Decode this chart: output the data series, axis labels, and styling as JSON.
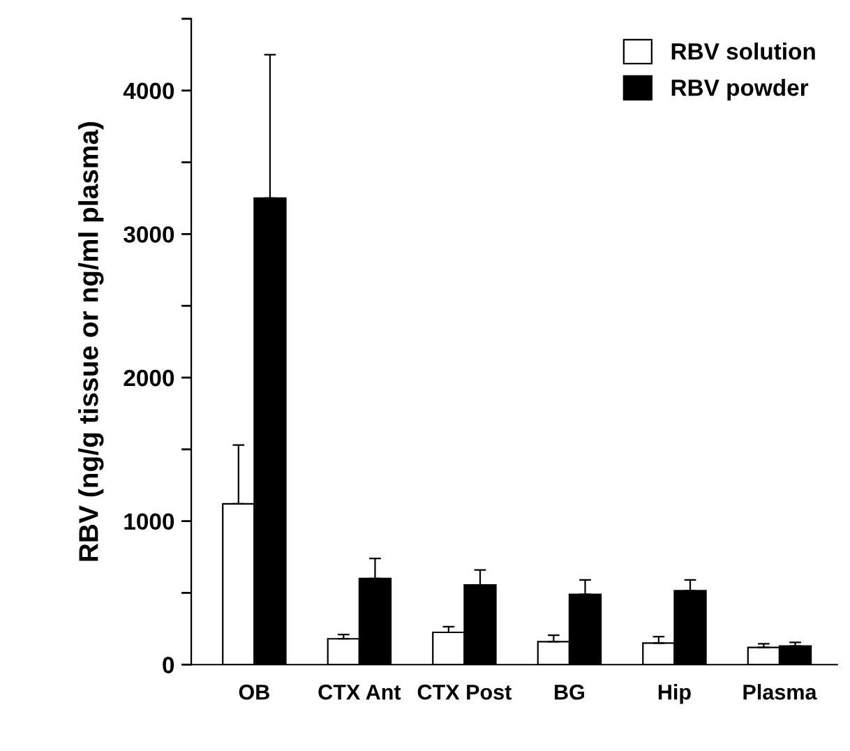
{
  "chart_data": {
    "type": "bar",
    "ylabel": "RBV (ng/g tissue or ng/ml plasma)",
    "categories": [
      "OB",
      "CTX Ant",
      "CTX Post",
      "BG",
      "Hip",
      "Plasma"
    ],
    "series": [
      {
        "name": "RBV solution",
        "color": "#ffffff",
        "values": [
          1120,
          180,
          225,
          160,
          150,
          120
        ],
        "errors": [
          410,
          30,
          40,
          45,
          45,
          25
        ]
      },
      {
        "name": "RBV powder",
        "color": "#000000",
        "values": [
          3250,
          600,
          555,
          490,
          515,
          130
        ],
        "errors": [
          1000,
          140,
          105,
          100,
          75,
          25
        ]
      }
    ],
    "ylim": [
      0,
      4500
    ],
    "yticks": [
      0,
      {
        "value": 500,
        "label": null
      },
      1000,
      {
        "value": 1500,
        "label": null
      },
      2000,
      {
        "value": 2500,
        "label": null
      },
      3000,
      {
        "value": 3500,
        "label": null
      },
      4000,
      {
        "value": 4500,
        "label": null
      }
    ],
    "grid": false,
    "legend": "top right"
  }
}
